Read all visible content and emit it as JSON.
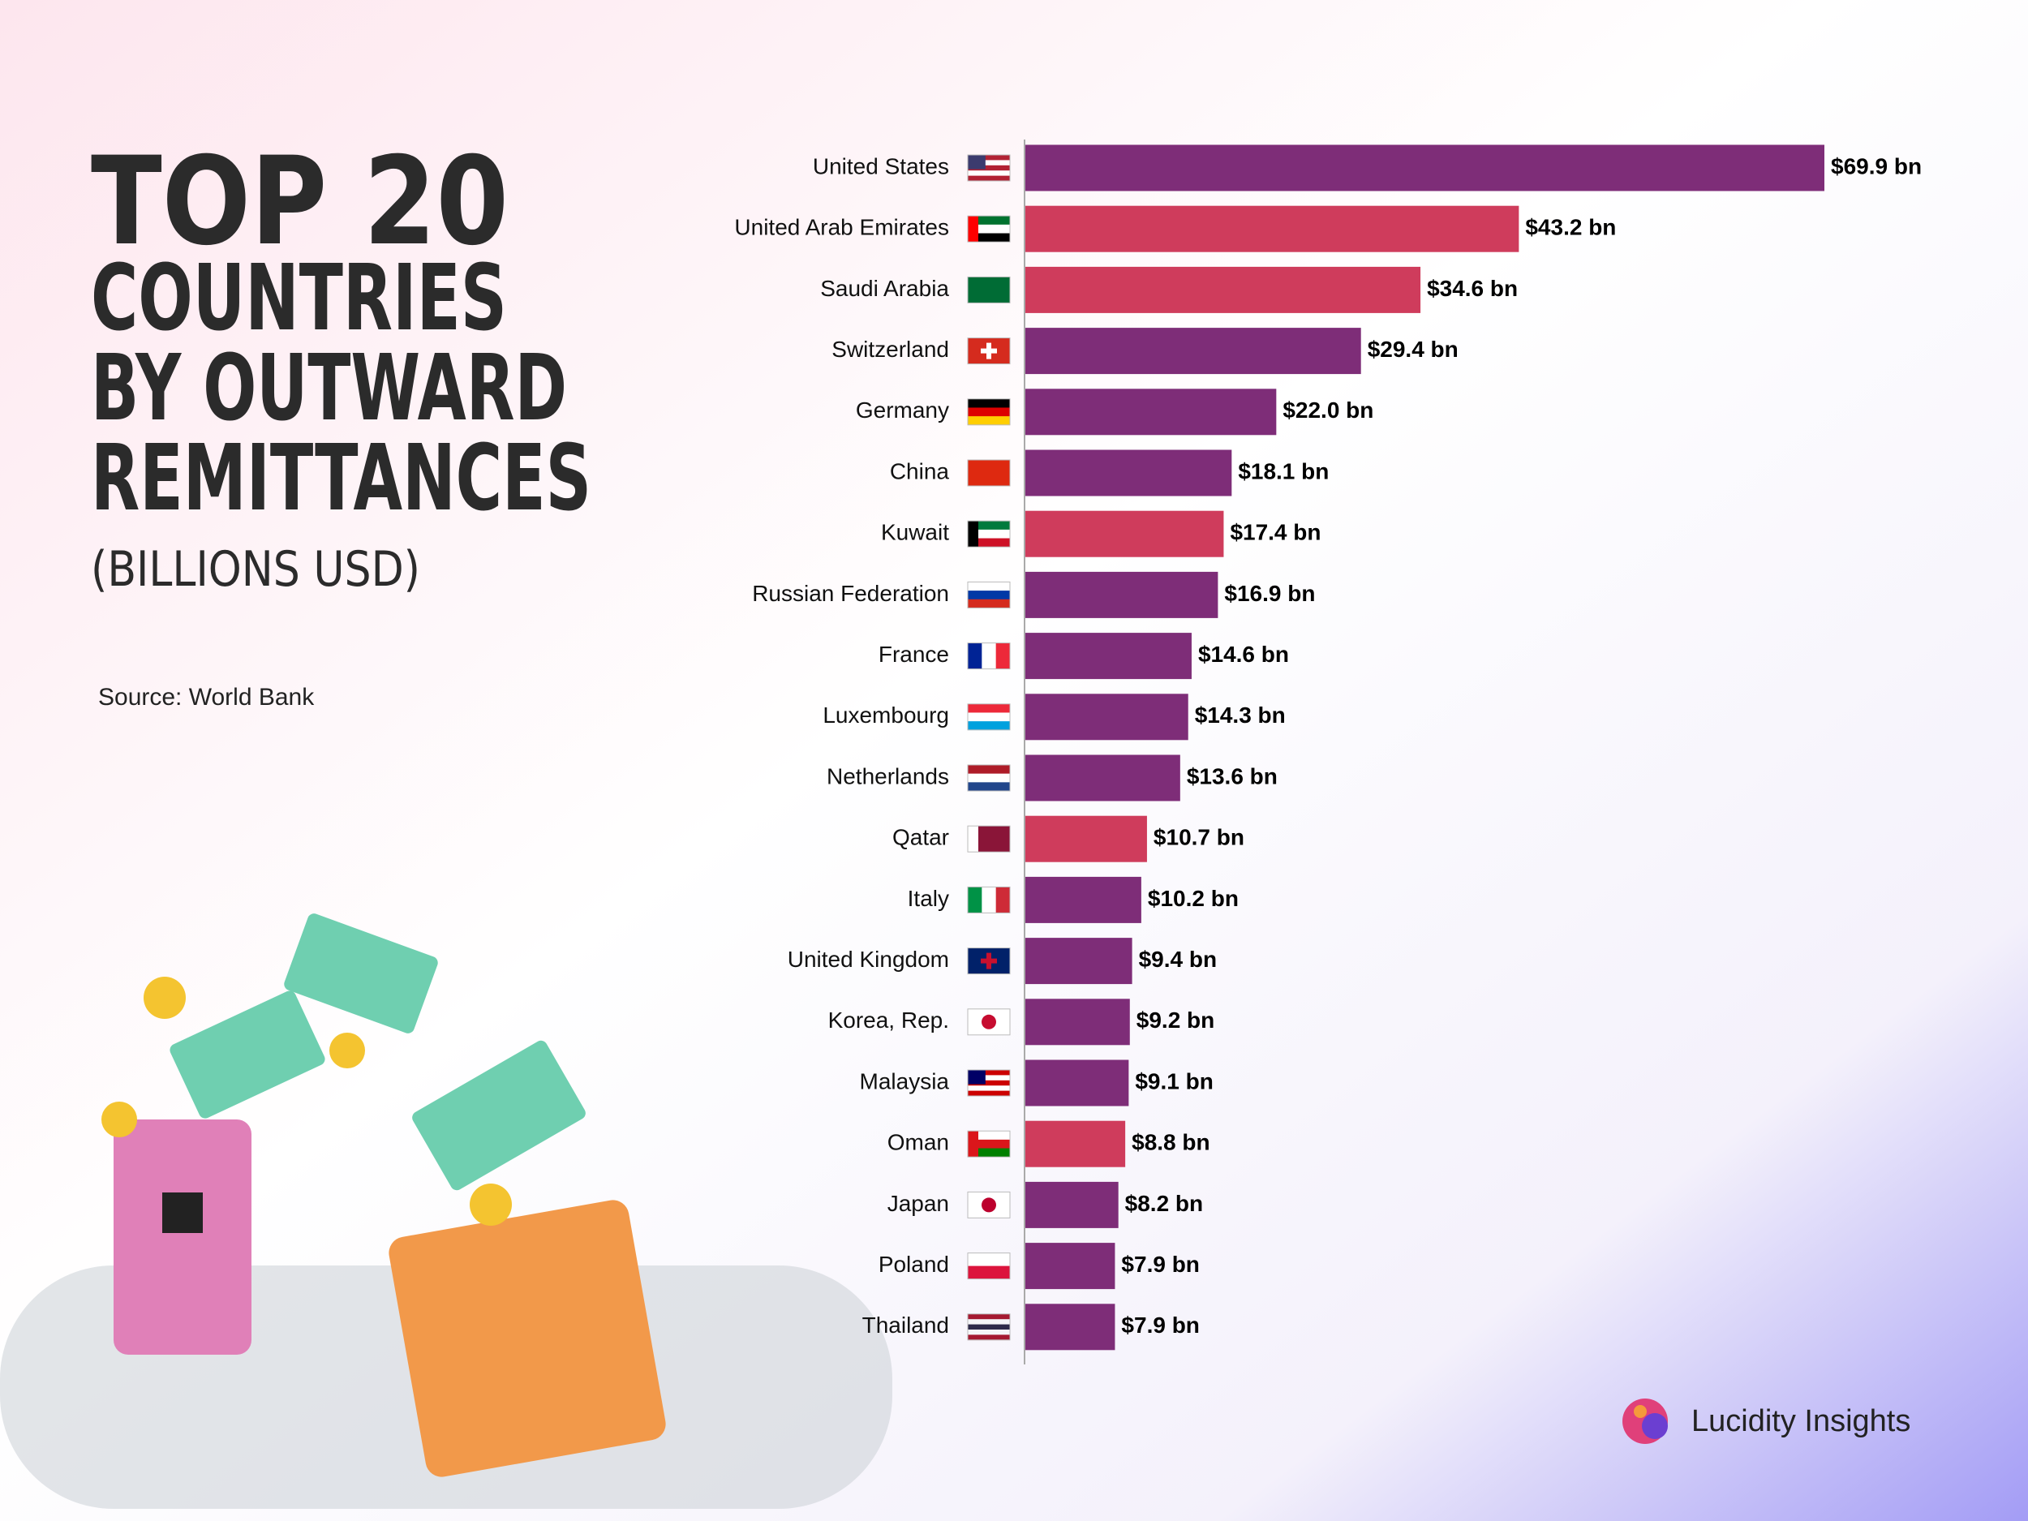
{
  "title_lines": [
    "TOP 20",
    "COUNTRIES",
    "BY OUTWARD",
    "REMITTANCES"
  ],
  "subtitle": "(BILLIONS USD)",
  "source": "Source: World Bank",
  "brand": "Lucidity Insights",
  "chart_data": {
    "type": "bar",
    "orientation": "horizontal",
    "categories": [
      "United States",
      "United Arab Emirates",
      "Saudi Arabia",
      "Switzerland",
      "Germany",
      "China",
      "Kuwait",
      "Russian Federation",
      "France",
      "Luxembourg",
      "Netherlands",
      "Qatar",
      "Italy",
      "United Kingdom",
      "Korea, Rep.",
      "Malaysia",
      "Oman",
      "Japan",
      "Poland",
      "Thailand"
    ],
    "values": [
      69.9,
      43.2,
      34.6,
      29.4,
      22.0,
      18.1,
      17.4,
      16.9,
      14.6,
      14.3,
      13.6,
      10.7,
      10.2,
      9.4,
      9.2,
      9.1,
      8.8,
      8.2,
      7.9,
      7.9
    ],
    "value_labels": [
      "$69.9 bn",
      "$43.2 bn",
      "$34.6 bn",
      "$29.4 bn",
      "$22.0 bn",
      "$18.1 bn",
      "$17.4 bn",
      "$16.9 bn",
      "$14.6 bn",
      "$14.3 bn",
      "$13.6 bn",
      "$10.7 bn",
      "$10.2 bn",
      "$9.4 bn",
      "$9.2 bn",
      "$9.1 bn",
      "$8.8 bn",
      "$8.2 bn",
      "$7.9 bn",
      "$7.9 bn"
    ],
    "colors": [
      "#7e2d78",
      "#cf3c5c",
      "#cf3c5c",
      "#7e2d78",
      "#7e2d78",
      "#7e2d78",
      "#cf3c5c",
      "#7e2d78",
      "#7e2d78",
      "#7e2d78",
      "#7e2d78",
      "#cf3c5c",
      "#7e2d78",
      "#7e2d78",
      "#7e2d78",
      "#7e2d78",
      "#cf3c5c",
      "#7e2d78",
      "#7e2d78",
      "#7e2d78"
    ]
  }
}
